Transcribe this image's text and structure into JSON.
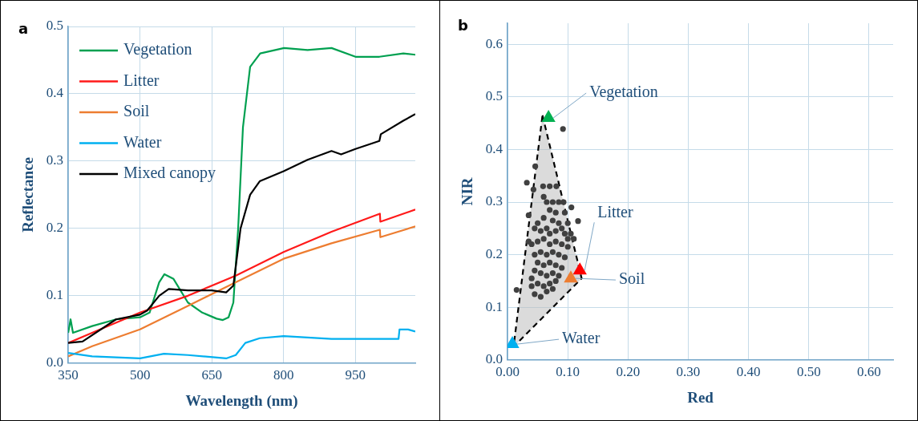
{
  "chart_data": [
    {
      "type": "line",
      "xlabel": "Wavelength (nm)",
      "ylabel": "Reflectance",
      "annotations": [
        "a"
      ],
      "xlim": [
        350,
        1075
      ],
      "xticks": [
        350,
        500,
        650,
        800,
        950
      ],
      "ylim": [
        0,
        0.5
      ],
      "yticks": [
        {
          "value": 0,
          "label": "0.0"
        },
        0.1,
        0.2,
        0.3,
        0.4,
        0.5
      ],
      "grid": true,
      "legend": "top left",
      "marker": "none",
      "line_style": "solid",
      "series": [
        {
          "name": "Vegetation",
          "color": "#00a050",
          "x": [
            350,
            355,
            360,
            400,
            450,
            500,
            520,
            540,
            551,
            570,
            600,
            630,
            660,
            673,
            685,
            695,
            705,
            715,
            730,
            751,
            801,
            850,
            900,
            950,
            1000,
            1050,
            1075
          ],
          "values": [
            0.045,
            0.065,
            0.045,
            0.055,
            0.065,
            0.068,
            0.075,
            0.12,
            0.132,
            0.125,
            0.09,
            0.075,
            0.066,
            0.064,
            0.068,
            0.09,
            0.2,
            0.35,
            0.44,
            0.46,
            0.468,
            0.465,
            0.468,
            0.455,
            0.455,
            0.46,
            0.458
          ]
        },
        {
          "name": "Litter",
          "color": "#ff1a1a",
          "x": [
            350,
            400,
            500,
            600,
            700,
            800,
            900,
            1001,
            1002,
            1075
          ],
          "values": [
            0.03,
            0.045,
            0.075,
            0.1,
            0.13,
            0.165,
            0.195,
            0.222,
            0.21,
            0.228
          ]
        },
        {
          "name": "Soil",
          "color": "#ed7d31",
          "x": [
            350,
            400,
            500,
            600,
            700,
            800,
            900,
            1001,
            1002,
            1075
          ],
          "values": [
            0.01,
            0.025,
            0.05,
            0.085,
            0.12,
            0.155,
            0.178,
            0.198,
            0.187,
            0.203
          ]
        },
        {
          "name": "Water",
          "color": "#00b0f0",
          "x": [
            350,
            400,
            500,
            550,
            600,
            680,
            700,
            720,
            750,
            800,
            900,
            1000,
            1040,
            1042,
            1060,
            1075
          ],
          "values": [
            0.015,
            0.01,
            0.007,
            0.014,
            0.012,
            0.007,
            0.012,
            0.03,
            0.037,
            0.04,
            0.036,
            0.036,
            0.036,
            0.05,
            0.05,
            0.047
          ]
        },
        {
          "name": "Mixed canopy",
          "color": "#000000",
          "x": [
            350,
            380,
            450,
            500,
            515,
            540,
            560,
            600,
            650,
            680,
            695,
            710,
            730,
            750,
            800,
            850,
            900,
            920,
            950,
            1000,
            1003,
            1050,
            1075
          ],
          "values": [
            0.03,
            0.032,
            0.065,
            0.072,
            0.078,
            0.1,
            0.11,
            0.108,
            0.108,
            0.105,
            0.115,
            0.2,
            0.25,
            0.27,
            0.285,
            0.302,
            0.315,
            0.31,
            0.318,
            0.33,
            0.34,
            0.36,
            0.37
          ]
        }
      ]
    },
    {
      "type": "scatter",
      "xlabel": "Red",
      "ylabel": "NIR",
      "annotations": [
        "b",
        {
          "text": "Vegetation",
          "x": 0.068,
          "y": 0.46
        },
        {
          "text": "Litter",
          "x": 0.12,
          "y": 0.17
        },
        {
          "text": "Soil",
          "x": 0.105,
          "y": 0.155
        },
        {
          "text": "Water",
          "x": 0.008,
          "y": 0.03
        }
      ],
      "xlim": [
        0,
        0.64
      ],
      "xticks": [
        {
          "value": 0,
          "label": "0.00"
        },
        {
          "value": 0.1,
          "label": "0.10"
        },
        {
          "value": 0.2,
          "label": "0.20"
        },
        {
          "value": 0.3,
          "label": "0.30"
        },
        {
          "value": 0.4,
          "label": "0.40"
        },
        {
          "value": 0.5,
          "label": "0.50"
        },
        {
          "value": 0.6,
          "label": "0.60"
        }
      ],
      "ylim": [
        0,
        0.64
      ],
      "yticks": [
        {
          "value": 0,
          "label": "0.0"
        },
        0.1,
        0.2,
        0.3,
        0.4,
        0.5,
        0.6
      ],
      "grid": true,
      "series": [
        {
          "type": "area",
          "color": "#000000",
          "line_style": "dashed",
          "marker": "none",
          "x": [
            0.058,
            0.123,
            0.01,
            0.058
          ],
          "values": [
            0.465,
            0.155,
            0.025,
            0.465
          ]
        },
        {
          "color": "#404040",
          "marker": "circle",
          "x": [
            0.092,
            0.015,
            0.032,
            0.046,
            0.106,
            0.117,
            0.093,
            0.059,
            0.07,
            0.081,
            0.035,
            0.043,
            0.06,
            0.065,
            0.075,
            0.07,
            0.08,
            0.06,
            0.075,
            0.085,
            0.05,
            0.045,
            0.055,
            0.065,
            0.07,
            0.08,
            0.09,
            0.095,
            0.1,
            0.1,
            0.04,
            0.05,
            0.06,
            0.07,
            0.08,
            0.09,
            0.045,
            0.055,
            0.065,
            0.075,
            0.085,
            0.095,
            0.05,
            0.06,
            0.07,
            0.08,
            0.09,
            0.045,
            0.055,
            0.065,
            0.075,
            0.085,
            0.04,
            0.05,
            0.06,
            0.07,
            0.08,
            0.04,
            0.045,
            0.055,
            0.065,
            0.075,
            0.035,
            0.105,
            0.11,
            0.1,
            0.085,
            0.095
          ],
          "values": [
            0.439,
            0.133,
            0.337,
            0.368,
            0.29,
            0.264,
            0.3,
            0.33,
            0.33,
            0.33,
            0.275,
            0.324,
            0.31,
            0.3,
            0.3,
            0.285,
            0.28,
            0.27,
            0.265,
            0.26,
            0.26,
            0.25,
            0.245,
            0.25,
            0.24,
            0.245,
            0.25,
            0.24,
            0.23,
            0.215,
            0.22,
            0.225,
            0.23,
            0.22,
            0.225,
            0.22,
            0.2,
            0.205,
            0.2,
            0.205,
            0.2,
            0.195,
            0.185,
            0.18,
            0.185,
            0.18,
            0.175,
            0.17,
            0.165,
            0.16,
            0.165,
            0.16,
            0.155,
            0.145,
            0.14,
            0.145,
            0.15,
            0.14,
            0.125,
            0.12,
            0.13,
            0.135,
            0.225,
            0.24,
            0.23,
            0.26,
            0.3,
            0.28
          ]
        },
        {
          "color": "#00b050",
          "marker": "triangle",
          "x": [
            0.068
          ],
          "values": [
            0.46
          ]
        },
        {
          "color": "#ff0000",
          "marker": "triangle",
          "x": [
            0.12
          ],
          "values": [
            0.17
          ]
        },
        {
          "color": "#ed7d31",
          "marker": "triangle",
          "x": [
            0.105
          ],
          "values": [
            0.155
          ]
        },
        {
          "color": "#00b0f0",
          "marker": "triangle",
          "x": [
            0.008
          ],
          "values": [
            0.03
          ]
        }
      ]
    }
  ]
}
